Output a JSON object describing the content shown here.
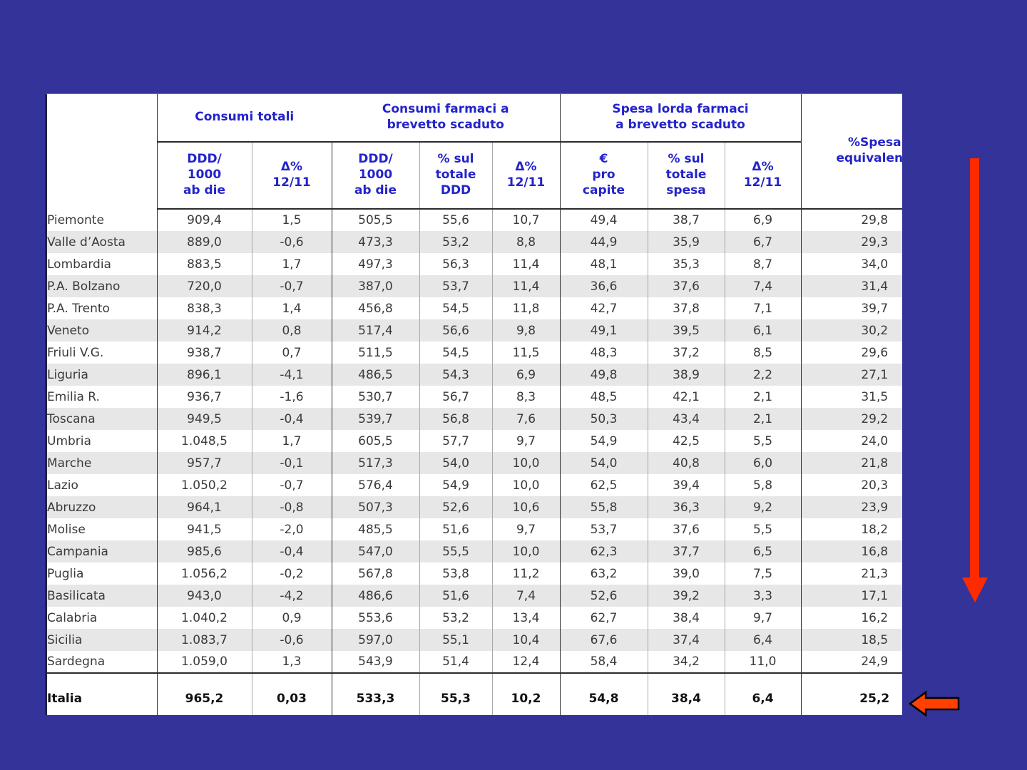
{
  "colors": {
    "background": "#333399",
    "table_bg": "#ffffff",
    "stripe": "#e7e7e7",
    "header_text": "#2323cb",
    "data_text": "#3a3a3a",
    "total_text": "#111111",
    "arrow_red": "#fe2b00",
    "arrow_outline": "#000000"
  },
  "table": {
    "header": {
      "groups": [
        {
          "label": "Consumi totali",
          "colspan": 2
        },
        {
          "label": "Consumi farmaci a\nbrevetto scaduto",
          "colspan": 3
        },
        {
          "label": "Spesa lorda farmaci\na brevetto scaduto",
          "colspan": 3
        }
      ],
      "subheaders": [
        "DDD/\n1000\nab die",
        "Δ%\n12/11",
        "DDD/\n1000\nab die",
        "% sul\ntotale\nDDD",
        "Δ%\n12/11",
        "€\npro\ncapite",
        "% sul\ntotale\nspesa",
        "Δ%\n12/11"
      ],
      "last_column": "%Spesa\nequivalenti"
    },
    "rows": [
      {
        "region": "Piemonte",
        "values": [
          "909,4",
          "1,5",
          "505,5",
          "55,6",
          "10,7",
          "49,4",
          "38,7",
          "6,9",
          "29,8"
        ]
      },
      {
        "region": "Valle d’Aosta",
        "values": [
          "889,0",
          "-0,6",
          "473,3",
          "53,2",
          "8,8",
          "44,9",
          "35,9",
          "6,7",
          "29,3"
        ]
      },
      {
        "region": "Lombardia",
        "values": [
          "883,5",
          "1,7",
          "497,3",
          "56,3",
          "11,4",
          "48,1",
          "35,3",
          "8,7",
          "34,0"
        ]
      },
      {
        "region": "P.A. Bolzano",
        "values": [
          "720,0",
          "-0,7",
          "387,0",
          "53,7",
          "11,4",
          "36,6",
          "37,6",
          "7,4",
          "31,4"
        ]
      },
      {
        "region": "P.A. Trento",
        "values": [
          "838,3",
          "1,4",
          "456,8",
          "54,5",
          "11,8",
          "42,7",
          "37,8",
          "7,1",
          "39,7"
        ]
      },
      {
        "region": "Veneto",
        "values": [
          "914,2",
          "0,8",
          "517,4",
          "56,6",
          "9,8",
          "49,1",
          "39,5",
          "6,1",
          "30,2"
        ]
      },
      {
        "region": "Friuli V.G.",
        "values": [
          "938,7",
          "0,7",
          "511,5",
          "54,5",
          "11,5",
          "48,3",
          "37,2",
          "8,5",
          "29,6"
        ]
      },
      {
        "region": "Liguria",
        "values": [
          "896,1",
          "-4,1",
          "486,5",
          "54,3",
          "6,9",
          "49,8",
          "38,9",
          "2,2",
          "27,1"
        ]
      },
      {
        "region": "Emilia R.",
        "values": [
          "936,7",
          "-1,6",
          "530,7",
          "56,7",
          "8,3",
          "48,5",
          "42,1",
          "2,1",
          "31,5"
        ]
      },
      {
        "region": "Toscana",
        "values": [
          "949,5",
          "-0,4",
          "539,7",
          "56,8",
          "7,6",
          "50,3",
          "43,4",
          "2,1",
          "29,2"
        ]
      },
      {
        "region": "Umbria",
        "values": [
          "1.048,5",
          "1,7",
          "605,5",
          "57,7",
          "9,7",
          "54,9",
          "42,5",
          "5,5",
          "24,0"
        ]
      },
      {
        "region": "Marche",
        "values": [
          "957,7",
          "-0,1",
          "517,3",
          "54,0",
          "10,0",
          "54,0",
          "40,8",
          "6,0",
          "21,8"
        ]
      },
      {
        "region": "Lazio",
        "values": [
          "1.050,2",
          "-0,7",
          "576,4",
          "54,9",
          "10,0",
          "62,5",
          "39,4",
          "5,8",
          "20,3"
        ]
      },
      {
        "region": "Abruzzo",
        "values": [
          "964,1",
          "-0,8",
          "507,3",
          "52,6",
          "10,6",
          "55,8",
          "36,3",
          "9,2",
          "23,9"
        ]
      },
      {
        "region": "Molise",
        "values": [
          "941,5",
          "-2,0",
          "485,5",
          "51,6",
          "9,7",
          "53,7",
          "37,6",
          "5,5",
          "18,2"
        ]
      },
      {
        "region": "Campania",
        "values": [
          "985,6",
          "-0,4",
          "547,0",
          "55,5",
          "10,0",
          "62,3",
          "37,7",
          "6,5",
          "16,8"
        ]
      },
      {
        "region": "Puglia",
        "values": [
          "1.056,2",
          "-0,2",
          "567,8",
          "53,8",
          "11,2",
          "63,2",
          "39,0",
          "7,5",
          "21,3"
        ]
      },
      {
        "region": "Basilicata",
        "values": [
          "943,0",
          "-4,2",
          "486,6",
          "51,6",
          "7,4",
          "52,6",
          "39,2",
          "3,3",
          "17,1"
        ]
      },
      {
        "region": "Calabria",
        "values": [
          "1.040,2",
          "0,9",
          "553,6",
          "53,2",
          "13,4",
          "62,7",
          "38,4",
          "9,7",
          "16,2"
        ]
      },
      {
        "region": "Sicilia",
        "values": [
          "1.083,7",
          "-0,6",
          "597,0",
          "55,1",
          "10,4",
          "67,6",
          "37,4",
          "6,4",
          "18,5"
        ]
      },
      {
        "region": "Sardegna",
        "values": [
          "1.059,0",
          "1,3",
          "543,9",
          "51,4",
          "12,4",
          "58,4",
          "34,2",
          "11,0",
          "24,9"
        ]
      }
    ],
    "total_row": {
      "region": "Italia",
      "values": [
        "965,2",
        "0,03",
        "533,3",
        "55,3",
        "10,2",
        "54,8",
        "38,4",
        "6,4",
        "25,2"
      ]
    }
  }
}
